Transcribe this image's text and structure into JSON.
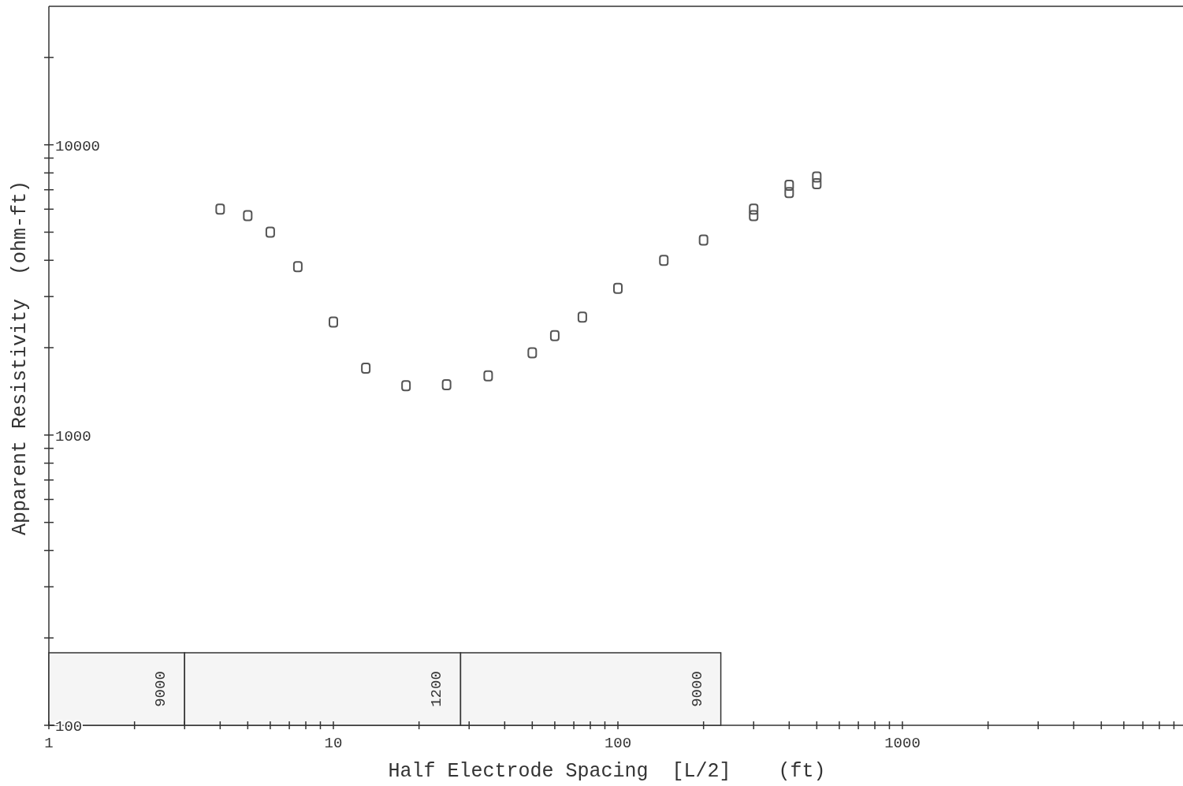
{
  "chart_data": {
    "type": "scatter",
    "xlabel": "Half Electrode Spacing  [L/2]    (ft)",
    "ylabel": "Apparent Resistivity  (ohm-ft)",
    "log": "xy",
    "grid": false,
    "marker": "square",
    "xlim": [
      1,
      10000
    ],
    "ylim": [
      100,
      30000
    ],
    "xticks": [
      1,
      {
        "value": 2,
        "label": null
      },
      {
        "value": 3,
        "label": null
      },
      {
        "value": 4,
        "label": null
      },
      {
        "value": 5,
        "label": null
      },
      {
        "value": 6,
        "label": null
      },
      {
        "value": 7,
        "label": null
      },
      {
        "value": 8,
        "label": null
      },
      {
        "value": 9,
        "label": null
      },
      10,
      {
        "value": 20,
        "label": null
      },
      {
        "value": 30,
        "label": null
      },
      {
        "value": 40,
        "label": null
      },
      {
        "value": 50,
        "label": null
      },
      {
        "value": 60,
        "label": null
      },
      {
        "value": 70,
        "label": null
      },
      {
        "value": 80,
        "label": null
      },
      {
        "value": 90,
        "label": null
      },
      100,
      {
        "value": 200,
        "label": null
      },
      {
        "value": 300,
        "label": null
      },
      {
        "value": 400,
        "label": null
      },
      {
        "value": 500,
        "label": null
      },
      {
        "value": 600,
        "label": null
      },
      {
        "value": 700,
        "label": null
      },
      {
        "value": 800,
        "label": null
      },
      {
        "value": 900,
        "label": null
      },
      1000,
      {
        "value": 2000,
        "label": null
      },
      {
        "value": 3000,
        "label": null
      },
      {
        "value": 4000,
        "label": null
      },
      {
        "value": 5000,
        "label": null
      },
      {
        "value": 6000,
        "label": null
      },
      {
        "value": 7000,
        "label": null
      },
      {
        "value": 8000,
        "label": null
      },
      {
        "value": 9000,
        "label": null
      }
    ],
    "yticks": [
      100,
      {
        "value": 200,
        "label": null
      },
      {
        "value": 300,
        "label": null
      },
      {
        "value": 400,
        "label": null
      },
      {
        "value": 500,
        "label": null
      },
      {
        "value": 600,
        "label": null
      },
      {
        "value": 700,
        "label": null
      },
      {
        "value": 800,
        "label": null
      },
      {
        "value": 900,
        "label": null
      },
      1000,
      {
        "value": 2000,
        "label": null
      },
      {
        "value": 3000,
        "label": null
      },
      {
        "value": 4000,
        "label": null
      },
      {
        "value": 5000,
        "label": null
      },
      {
        "value": 6000,
        "label": null
      },
      {
        "value": 7000,
        "label": null
      },
      {
        "value": 8000,
        "label": null
      },
      {
        "value": 9000,
        "label": null
      },
      10000,
      {
        "value": 20000,
        "label": null
      }
    ],
    "x": [
      4,
      5,
      6,
      7.5,
      10,
      13,
      18,
      25,
      35,
      50,
      60,
      75,
      100,
      145,
      200,
      300,
      300,
      400,
      400,
      500,
      500
    ],
    "series": [
      {
        "color": "#555555",
        "values": [
          6000,
          5700,
          5000,
          3800,
          2450,
          1700,
          1480,
          1490,
          1600,
          1920,
          2200,
          2550,
          3200,
          4000,
          4700,
          6000,
          5700,
          7250,
          6850,
          7750,
          7350
        ]
      }
    ],
    "bands": [
      {
        "axis": "x",
        "from": 1,
        "to": 3,
        "label": "9000",
        "color": "#f5f5f5"
      },
      {
        "axis": "x",
        "from": 3,
        "to": 28,
        "label": "1200",
        "color": "#f5f5f5"
      },
      {
        "axis": "x",
        "from": 28,
        "to": 230,
        "label": "9000",
        "color": "#f5f5f5"
      }
    ]
  }
}
